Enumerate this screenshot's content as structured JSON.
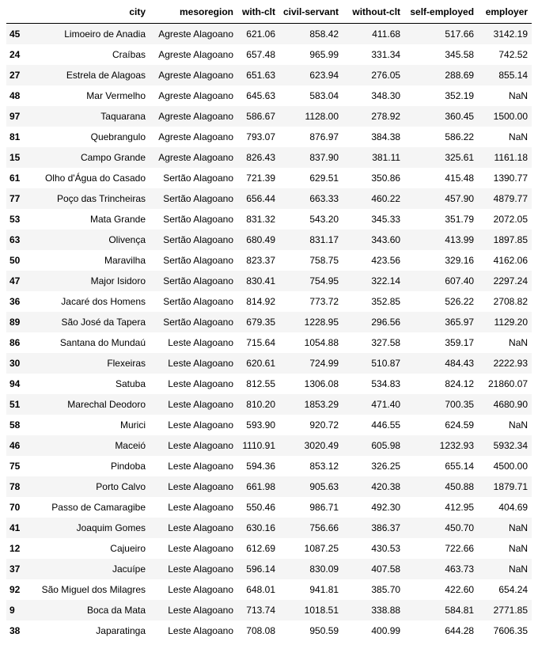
{
  "table": {
    "columns": {
      "index": "",
      "city": "city",
      "mesoregion": "mesoregion",
      "with_clt": "with-clt",
      "civil_servant": "civil-servant",
      "without_clt": "without-clt",
      "self_employed": "self-employed",
      "employer": "employer"
    },
    "rows": [
      {
        "index": "45",
        "city": "Limoeiro de Anadia",
        "mesoregion": "Agreste Alagoano",
        "with_clt": "621.06",
        "civil_servant": "858.42",
        "without_clt": "411.68",
        "self_employed": "517.66",
        "employer": "3142.19"
      },
      {
        "index": "24",
        "city": "Craíbas",
        "mesoregion": "Agreste Alagoano",
        "with_clt": "657.48",
        "civil_servant": "965.99",
        "without_clt": "331.34",
        "self_employed": "345.58",
        "employer": "742.52"
      },
      {
        "index": "27",
        "city": "Estrela de Alagoas",
        "mesoregion": "Agreste Alagoano",
        "with_clt": "651.63",
        "civil_servant": "623.94",
        "without_clt": "276.05",
        "self_employed": "288.69",
        "employer": "855.14"
      },
      {
        "index": "48",
        "city": "Mar Vermelho",
        "mesoregion": "Agreste Alagoano",
        "with_clt": "645.63",
        "civil_servant": "583.04",
        "without_clt": "348.30",
        "self_employed": "352.19",
        "employer": "NaN"
      },
      {
        "index": "97",
        "city": "Taquarana",
        "mesoregion": "Agreste Alagoano",
        "with_clt": "586.67",
        "civil_servant": "1128.00",
        "without_clt": "278.92",
        "self_employed": "360.45",
        "employer": "1500.00"
      },
      {
        "index": "81",
        "city": "Quebrangulo",
        "mesoregion": "Agreste Alagoano",
        "with_clt": "793.07",
        "civil_servant": "876.97",
        "without_clt": "384.38",
        "self_employed": "586.22",
        "employer": "NaN"
      },
      {
        "index": "15",
        "city": "Campo Grande",
        "mesoregion": "Agreste Alagoano",
        "with_clt": "826.43",
        "civil_servant": "837.90",
        "without_clt": "381.11",
        "self_employed": "325.61",
        "employer": "1161.18"
      },
      {
        "index": "61",
        "city": "Olho d'Água do Casado",
        "mesoregion": "Sertão Alagoano",
        "with_clt": "721.39",
        "civil_servant": "629.51",
        "without_clt": "350.86",
        "self_employed": "415.48",
        "employer": "1390.77"
      },
      {
        "index": "77",
        "city": "Poço das Trincheiras",
        "mesoregion": "Sertão Alagoano",
        "with_clt": "656.44",
        "civil_servant": "663.33",
        "without_clt": "460.22",
        "self_employed": "457.90",
        "employer": "4879.77"
      },
      {
        "index": "53",
        "city": "Mata Grande",
        "mesoregion": "Sertão Alagoano",
        "with_clt": "831.32",
        "civil_servant": "543.20",
        "without_clt": "345.33",
        "self_employed": "351.79",
        "employer": "2072.05"
      },
      {
        "index": "63",
        "city": "Olivença",
        "mesoregion": "Sertão Alagoano",
        "with_clt": "680.49",
        "civil_servant": "831.17",
        "without_clt": "343.60",
        "self_employed": "413.99",
        "employer": "1897.85"
      },
      {
        "index": "50",
        "city": "Maravilha",
        "mesoregion": "Sertão Alagoano",
        "with_clt": "823.37",
        "civil_servant": "758.75",
        "without_clt": "423.56",
        "self_employed": "329.16",
        "employer": "4162.06"
      },
      {
        "index": "47",
        "city": "Major Isidoro",
        "mesoregion": "Sertão Alagoano",
        "with_clt": "830.41",
        "civil_servant": "754.95",
        "without_clt": "322.14",
        "self_employed": "607.40",
        "employer": "2297.24"
      },
      {
        "index": "36",
        "city": "Jacaré dos Homens",
        "mesoregion": "Sertão Alagoano",
        "with_clt": "814.92",
        "civil_servant": "773.72",
        "without_clt": "352.85",
        "self_employed": "526.22",
        "employer": "2708.82"
      },
      {
        "index": "89",
        "city": "São José da Tapera",
        "mesoregion": "Sertão Alagoano",
        "with_clt": "679.35",
        "civil_servant": "1228.95",
        "without_clt": "296.56",
        "self_employed": "365.97",
        "employer": "1129.20"
      },
      {
        "index": "86",
        "city": "Santana do Mundaú",
        "mesoregion": "Leste Alagoano",
        "with_clt": "715.64",
        "civil_servant": "1054.88",
        "without_clt": "327.58",
        "self_employed": "359.17",
        "employer": "NaN"
      },
      {
        "index": "30",
        "city": "Flexeiras",
        "mesoregion": "Leste Alagoano",
        "with_clt": "620.61",
        "civil_servant": "724.99",
        "without_clt": "510.87",
        "self_employed": "484.43",
        "employer": "2222.93"
      },
      {
        "index": "94",
        "city": "Satuba",
        "mesoregion": "Leste Alagoano",
        "with_clt": "812.55",
        "civil_servant": "1306.08",
        "without_clt": "534.83",
        "self_employed": "824.12",
        "employer": "21860.07"
      },
      {
        "index": "51",
        "city": "Marechal Deodoro",
        "mesoregion": "Leste Alagoano",
        "with_clt": "810.20",
        "civil_servant": "1853.29",
        "without_clt": "471.40",
        "self_employed": "700.35",
        "employer": "4680.90"
      },
      {
        "index": "58",
        "city": "Murici",
        "mesoregion": "Leste Alagoano",
        "with_clt": "593.90",
        "civil_servant": "920.72",
        "without_clt": "446.55",
        "self_employed": "624.59",
        "employer": "NaN"
      },
      {
        "index": "46",
        "city": "Maceió",
        "mesoregion": "Leste Alagoano",
        "with_clt": "1110.91",
        "civil_servant": "3020.49",
        "without_clt": "605.98",
        "self_employed": "1232.93",
        "employer": "5932.34"
      },
      {
        "index": "75",
        "city": "Pindoba",
        "mesoregion": "Leste Alagoano",
        "with_clt": "594.36",
        "civil_servant": "853.12",
        "without_clt": "326.25",
        "self_employed": "655.14",
        "employer": "4500.00"
      },
      {
        "index": "78",
        "city": "Porto Calvo",
        "mesoregion": "Leste Alagoano",
        "with_clt": "661.98",
        "civil_servant": "905.63",
        "without_clt": "420.38",
        "self_employed": "450.88",
        "employer": "1879.71"
      },
      {
        "index": "70",
        "city": "Passo de Camaragibe",
        "mesoregion": "Leste Alagoano",
        "with_clt": "550.46",
        "civil_servant": "986.71",
        "without_clt": "492.30",
        "self_employed": "412.95",
        "employer": "404.69"
      },
      {
        "index": "41",
        "city": "Joaquim Gomes",
        "mesoregion": "Leste Alagoano",
        "with_clt": "630.16",
        "civil_servant": "756.66",
        "without_clt": "386.37",
        "self_employed": "450.70",
        "employer": "NaN"
      },
      {
        "index": "12",
        "city": "Cajueiro",
        "mesoregion": "Leste Alagoano",
        "with_clt": "612.69",
        "civil_servant": "1087.25",
        "without_clt": "430.53",
        "self_employed": "722.66",
        "employer": "NaN"
      },
      {
        "index": "37",
        "city": "Jacuípe",
        "mesoregion": "Leste Alagoano",
        "with_clt": "596.14",
        "civil_servant": "830.09",
        "without_clt": "407.58",
        "self_employed": "463.73",
        "employer": "NaN"
      },
      {
        "index": "92",
        "city": "São Miguel dos Milagres",
        "mesoregion": "Leste Alagoano",
        "with_clt": "648.01",
        "civil_servant": "941.81",
        "without_clt": "385.70",
        "self_employed": "422.60",
        "employer": "654.24"
      },
      {
        "index": "9",
        "city": "Boca da Mata",
        "mesoregion": "Leste Alagoano",
        "with_clt": "713.74",
        "civil_servant": "1018.51",
        "without_clt": "338.88",
        "self_employed": "584.81",
        "employer": "2771.85"
      },
      {
        "index": "38",
        "city": "Japaratinga",
        "mesoregion": "Leste Alagoano",
        "with_clt": "708.08",
        "civil_servant": "950.59",
        "without_clt": "400.99",
        "self_employed": "644.28",
        "employer": "7606.35"
      }
    ]
  }
}
